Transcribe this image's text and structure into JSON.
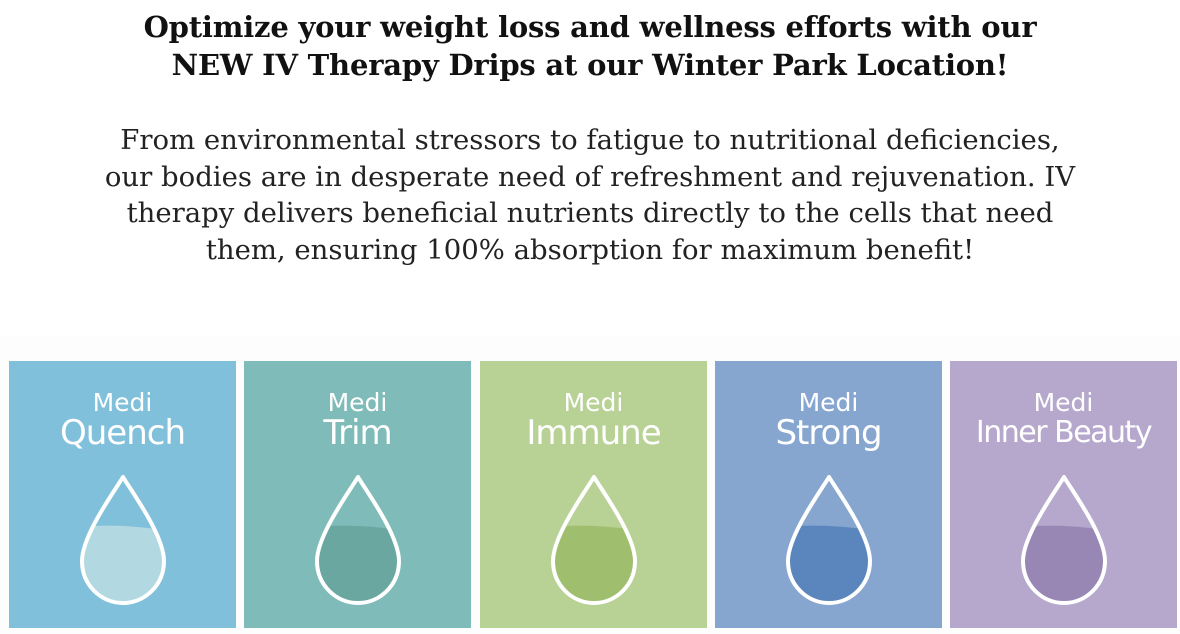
{
  "headline": {
    "line1": "Optimize your weight loss and wellness efforts with our",
    "line2": "NEW IV Therapy Drips at our Winter Park Location!"
  },
  "intro": {
    "line1": "From environmental stressors to fatigue to nutritional deficiencies,",
    "line2": "our bodies are in desperate need of refreshment and rejuvenation. IV",
    "line3": "therapy delivers beneficial nutrients directly to the cells that need",
    "line4": "them, ensuring 100% absorption for maximum benefit!"
  },
  "drips": [
    {
      "prefix": "Medi",
      "name": "Quench",
      "icon": "water-drop-icon",
      "bg": "#81c0db",
      "fill": "#b2d9e1"
    },
    {
      "prefix": "Medi",
      "name": "Trim",
      "icon": "water-drop-icon",
      "bg": "#7fbbb8",
      "fill": "#6aa7a0"
    },
    {
      "prefix": "Medi",
      "name": "Immune",
      "icon": "water-drop-icon",
      "bg": "#b8d195",
      "fill": "#9fbf6f"
    },
    {
      "prefix": "Medi",
      "name": "Strong",
      "icon": "water-drop-icon",
      "bg": "#86a6d0",
      "fill": "#5b85bd"
    },
    {
      "prefix": "Medi",
      "name": "Inner Beauty",
      "icon": "water-drop-icon",
      "bg": "#b5a8cc",
      "fill": "#9886b5"
    }
  ]
}
